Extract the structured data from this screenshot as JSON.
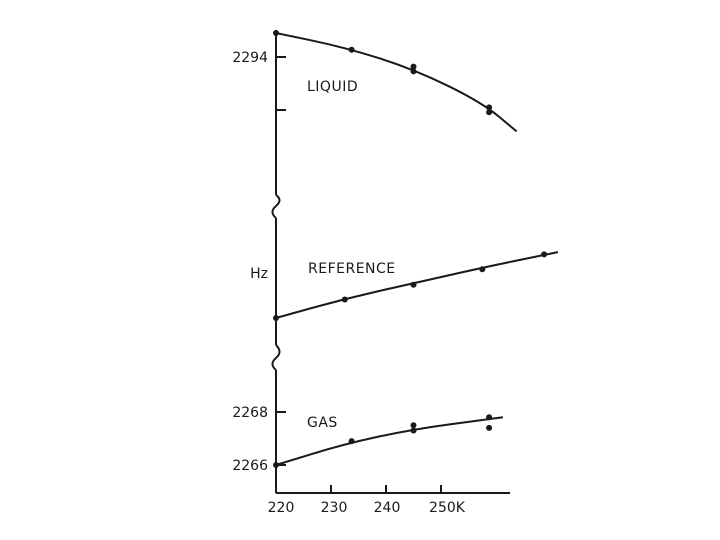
{
  "chart_data": {
    "type": "scatter",
    "title": "",
    "xlabel": "",
    "ylabel": "Hz",
    "x_ticks": [
      "220",
      "230",
      "240",
      "250K"
    ],
    "xlim": [
      220,
      260
    ],
    "grid": false,
    "legend": "none",
    "panels": [
      {
        "name": "LIQUID",
        "y_tick_labels": [
          "2294"
        ],
        "ylim": [
          2290.2,
          2295.2
        ],
        "points": [
          {
            "x": 220,
            "y": 2295.0
          },
          {
            "x": 231,
            "y": 2294.3
          },
          {
            "x": 240,
            "y": 2293.6
          },
          {
            "x": 240,
            "y": 2293.4
          },
          {
            "x": 251,
            "y": 2291.9
          },
          {
            "x": 251,
            "y": 2291.7
          }
        ],
        "curve": [
          {
            "x": 220,
            "y": 2295.0
          },
          {
            "x": 230,
            "y": 2294.4
          },
          {
            "x": 240,
            "y": 2293.5
          },
          {
            "x": 250,
            "y": 2292.1
          },
          {
            "x": 255,
            "y": 2290.9
          }
        ]
      },
      {
        "name": "REFERENCE",
        "y_tick_labels": [],
        "ylim": [
          0,
          1
        ],
        "points": [
          {
            "x": 220,
            "y": 0.0
          },
          {
            "x": 230,
            "y": 0.25
          },
          {
            "x": 240,
            "y": 0.45
          },
          {
            "x": 250,
            "y": 0.66
          },
          {
            "x": 259,
            "y": 0.86
          }
        ],
        "curve": [
          {
            "x": 220,
            "y": 0.0
          },
          {
            "x": 230,
            "y": 0.26
          },
          {
            "x": 240,
            "y": 0.47
          },
          {
            "x": 250,
            "y": 0.68
          },
          {
            "x": 261,
            "y": 0.89
          }
        ]
      },
      {
        "name": "GAS",
        "y_tick_labels": [
          "2268",
          "2266"
        ],
        "ylim": [
          2265.9,
          2268.2
        ],
        "points": [
          {
            "x": 220,
            "y": 2266.0
          },
          {
            "x": 231,
            "y": 2266.9
          },
          {
            "x": 240,
            "y": 2267.3
          },
          {
            "x": 240,
            "y": 2267.5
          },
          {
            "x": 251,
            "y": 2267.8
          },
          {
            "x": 251,
            "y": 2267.4
          }
        ],
        "curve": [
          {
            "x": 220,
            "y": 2266.0
          },
          {
            "x": 230,
            "y": 2266.8
          },
          {
            "x": 240,
            "y": 2267.35
          },
          {
            "x": 250,
            "y": 2267.7
          },
          {
            "x": 253,
            "y": 2267.8
          }
        ]
      }
    ]
  }
}
